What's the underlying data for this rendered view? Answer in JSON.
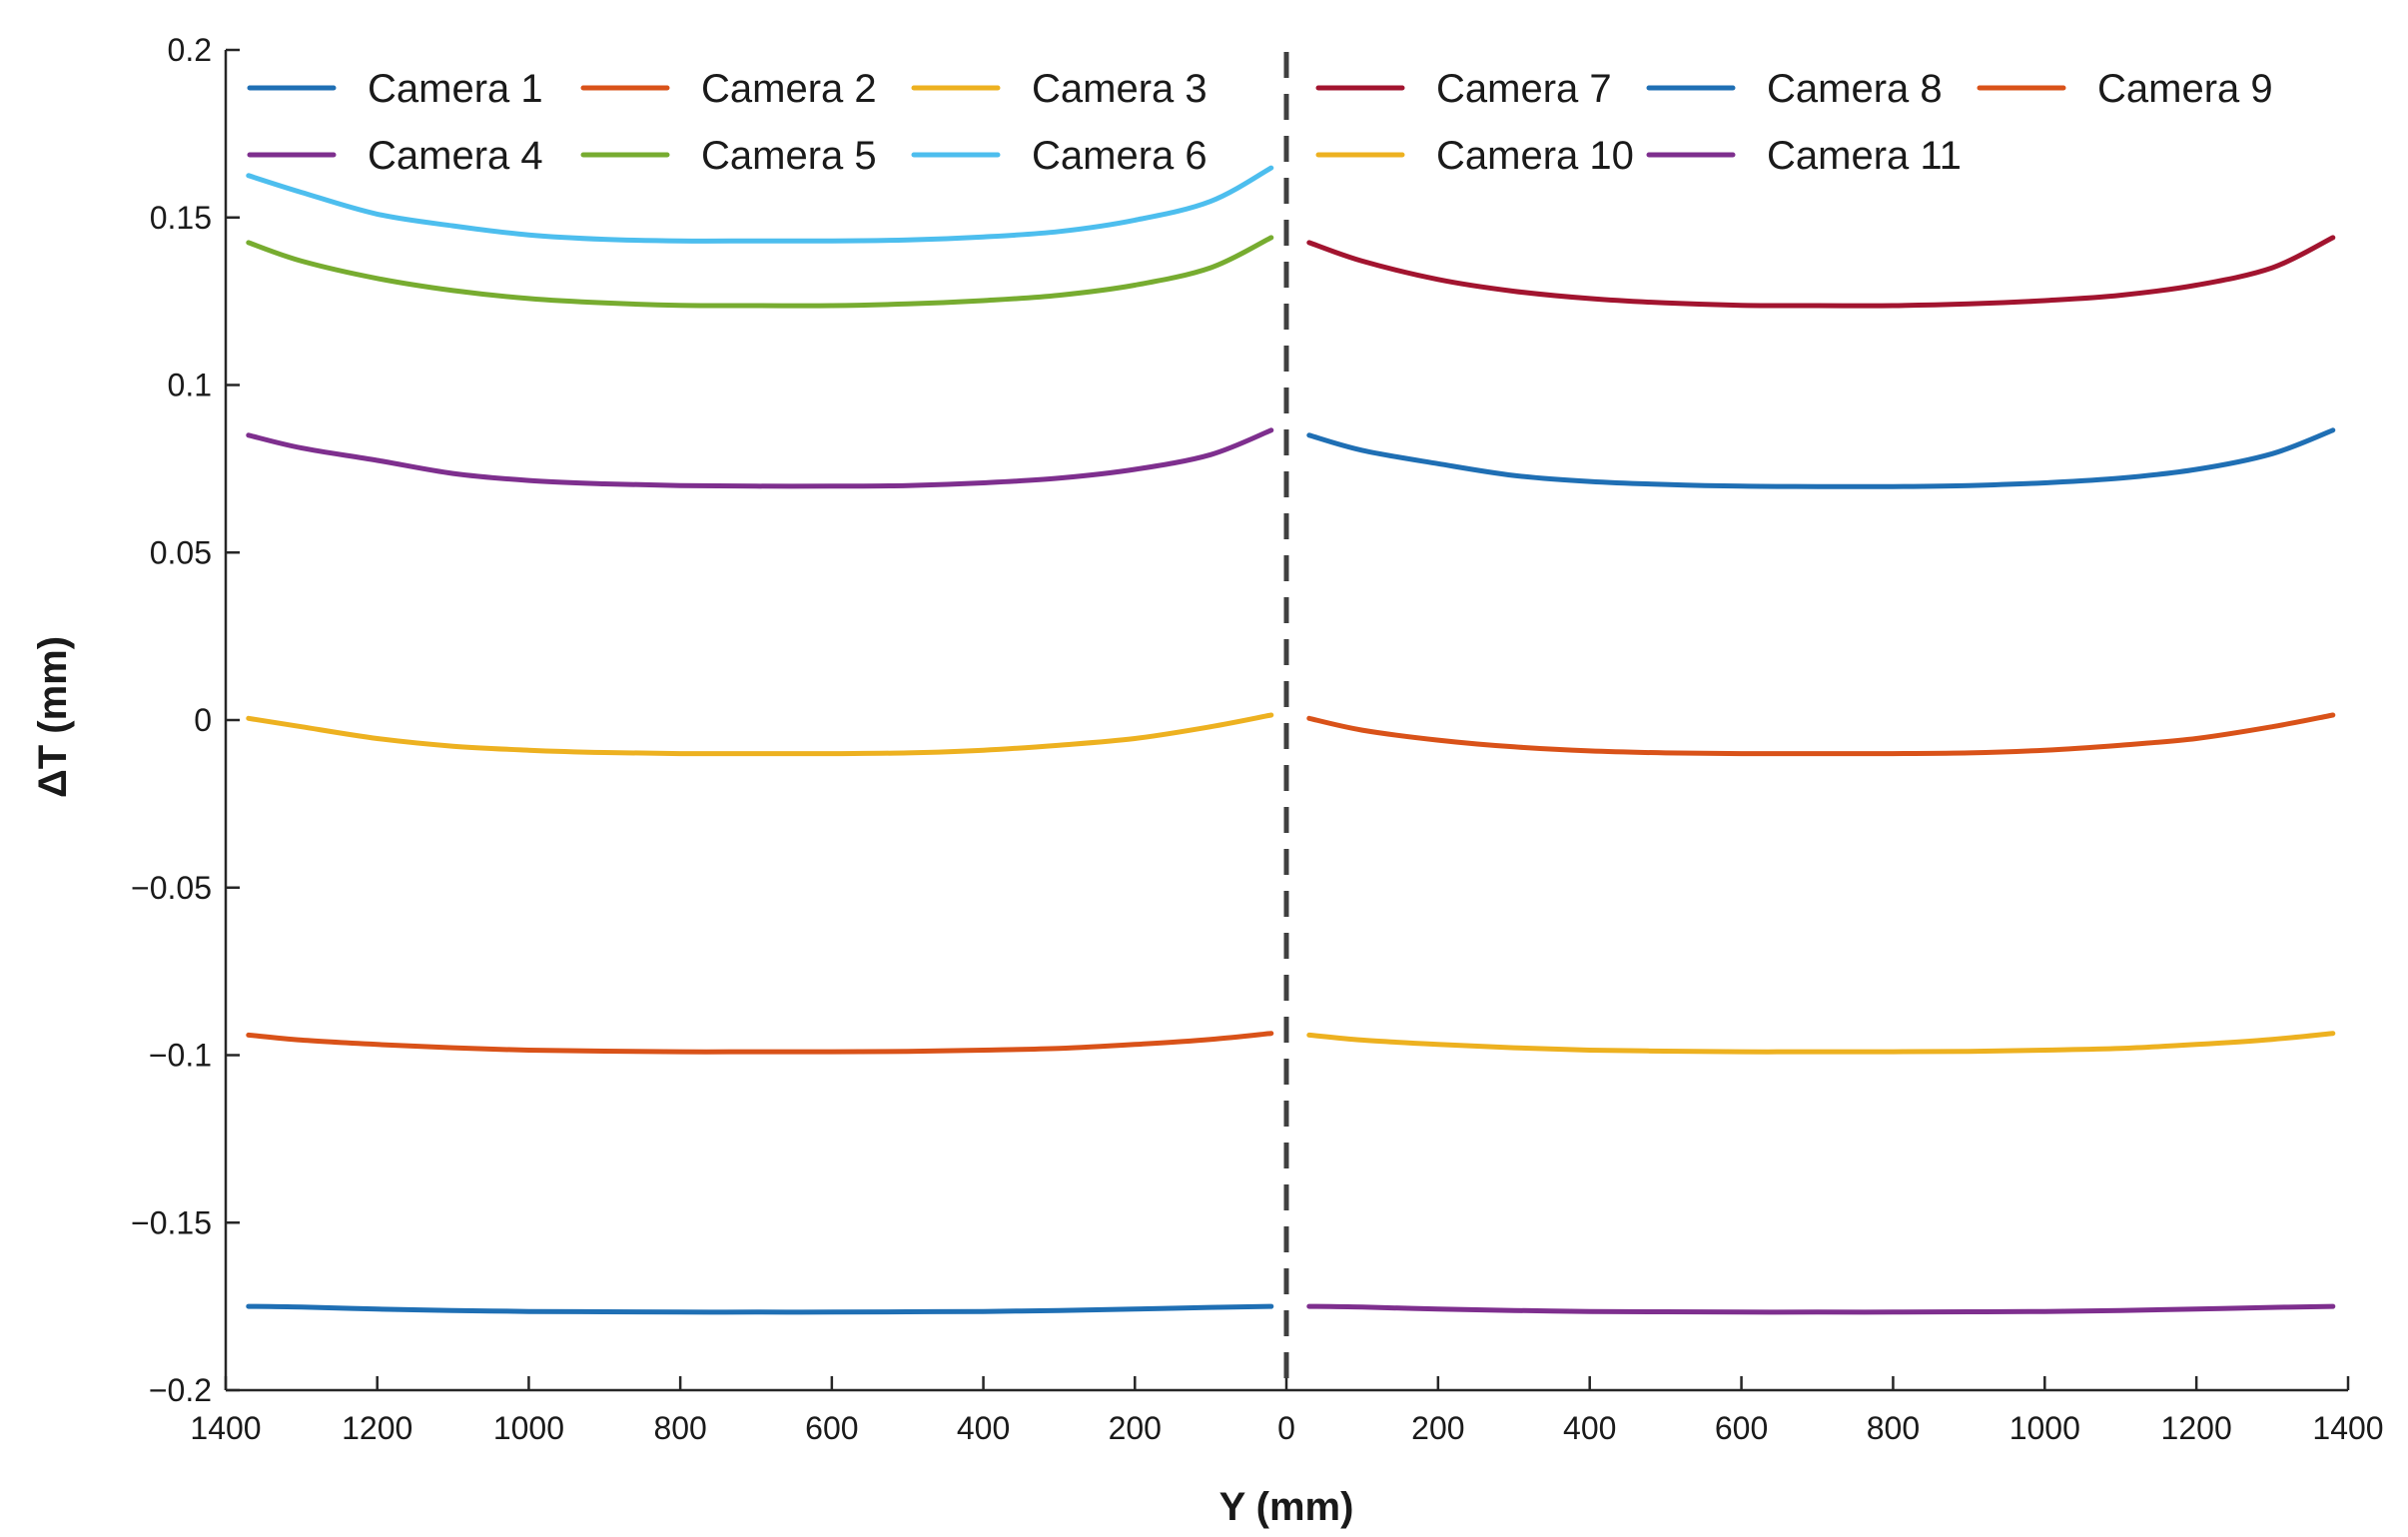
{
  "chart_data": {
    "type": "line",
    "xlabel": "Y (mm)",
    "ylabel": "ΔT (mm)",
    "ylim": [
      -0.2,
      0.2
    ],
    "yticks": [
      {
        "value": 0.2,
        "label": "0.2"
      },
      {
        "value": 0.15,
        "label": "0.15"
      },
      {
        "value": 0.1,
        "label": "0.1"
      },
      {
        "value": 0.05,
        "label": "0.05"
      },
      {
        "value": 0,
        "label": "0"
      },
      {
        "value": -0.05,
        "label": "−0.05"
      },
      {
        "value": -0.1,
        "label": "−0.1"
      },
      {
        "value": -0.15,
        "label": "−0.15"
      },
      {
        "value": -0.2,
        "label": "−0.2"
      }
    ],
    "xticks_left": [
      "1400",
      "1200",
      "1000",
      "800",
      "600",
      "400",
      "200"
    ],
    "xticks_right": [
      "0",
      "200",
      "400",
      "600",
      "800",
      "1000",
      "1200",
      "1400"
    ],
    "divider": "dashed vertical line at Y = 0",
    "legend_placement": "top",
    "panels": [
      {
        "side": "left",
        "x_direction": "decreasing",
        "xlim": [
          1400,
          0
        ],
        "series": [
          {
            "name": "Camera 1",
            "color": "#1f6fb4",
            "x": [
              1370,
              1300,
              1200,
              1100,
              1000,
              900,
              800,
              700,
              600,
              500,
              400,
              300,
              200,
              100,
              20
            ],
            "y": [
              -0.175,
              -0.1752,
              -0.1758,
              -0.1762,
              -0.1765,
              -0.1766,
              -0.1767,
              -0.1767,
              -0.1767,
              -0.1766,
              -0.1765,
              -0.1762,
              -0.1758,
              -0.1753,
              -0.175
            ]
          },
          {
            "name": "Camera 2",
            "color": "#d95219",
            "x": [
              1370,
              1300,
              1200,
              1100,
              1000,
              900,
              800,
              700,
              600,
              500,
              400,
              300,
              200,
              100,
              20
            ],
            "y": [
              -0.094,
              -0.0955,
              -0.0968,
              -0.0978,
              -0.0985,
              -0.0988,
              -0.099,
              -0.099,
              -0.099,
              -0.0989,
              -0.0985,
              -0.098,
              -0.0968,
              -0.0953,
              -0.0935
            ]
          },
          {
            "name": "Camera 3",
            "color": "#edb120",
            "x": [
              1370,
              1300,
              1200,
              1100,
              1000,
              900,
              800,
              700,
              600,
              500,
              400,
              300,
              200,
              100,
              20
            ],
            "y": [
              0.0005,
              -0.002,
              -0.0055,
              -0.0078,
              -0.009,
              -0.0097,
              -0.01,
              -0.01,
              -0.01,
              -0.0098,
              -0.009,
              -0.0075,
              -0.0055,
              -0.002,
              0.0015
            ]
          },
          {
            "name": "Camera 4",
            "color": "#7e2f8e",
            "x": [
              1370,
              1300,
              1200,
              1100,
              1000,
              900,
              800,
              700,
              600,
              500,
              400,
              300,
              200,
              100,
              20
            ],
            "y": [
              0.085,
              0.0812,
              0.0775,
              0.0736,
              0.0715,
              0.0705,
              0.07,
              0.0698,
              0.0698,
              0.07,
              0.0708,
              0.0722,
              0.0748,
              0.0792,
              0.0865
            ]
          },
          {
            "name": "Camera 5",
            "color": "#77ac30",
            "x": [
              1370,
              1300,
              1200,
              1100,
              1000,
              900,
              800,
              700,
              600,
              500,
              400,
              300,
              200,
              100,
              20
            ],
            "y": [
              0.1425,
              0.137,
              0.1318,
              0.1282,
              0.1258,
              0.1245,
              0.1238,
              0.1237,
              0.1237,
              0.1242,
              0.1252,
              0.1268,
              0.1298,
              0.135,
              0.144
            ]
          },
          {
            "name": "Camera 6",
            "color": "#4dbeee",
            "x": [
              1370,
              1300,
              1200,
              1100,
              1000,
              900,
              800,
              700,
              600,
              500,
              400,
              300,
              200,
              100,
              20
            ],
            "y": [
              0.1625,
              0.1575,
              0.151,
              0.1475,
              0.1448,
              0.1435,
              0.143,
              0.143,
              0.143,
              0.1433,
              0.1442,
              0.1458,
              0.1492,
              0.1548,
              0.1648
            ]
          }
        ]
      },
      {
        "side": "right",
        "x_direction": "increasing",
        "xlim": [
          0,
          1400
        ],
        "series": [
          {
            "name": "Camera 7",
            "color": "#a2142f",
            "x": [
              30,
              100,
              200,
              300,
              400,
              500,
              600,
              700,
              800,
              900,
              1000,
              1100,
              1200,
              1300,
              1380
            ],
            "y": [
              0.1425,
              0.137,
              0.1315,
              0.128,
              0.1258,
              0.1245,
              0.1238,
              0.1237,
              0.1237,
              0.1242,
              0.1252,
              0.1268,
              0.1298,
              0.135,
              0.144
            ]
          },
          {
            "name": "Camera 8",
            "color": "#1f6fb4",
            "x": [
              30,
              100,
              200,
              300,
              400,
              500,
              600,
              700,
              800,
              900,
              1000,
              1100,
              1200,
              1300,
              1380
            ],
            "y": [
              0.085,
              0.0805,
              0.0765,
              0.073,
              0.0712,
              0.0703,
              0.0698,
              0.0697,
              0.0697,
              0.07,
              0.0708,
              0.0722,
              0.0748,
              0.0795,
              0.0865
            ]
          },
          {
            "name": "Camera 9",
            "color": "#d95219",
            "x": [
              30,
              100,
              200,
              300,
              400,
              500,
              600,
              700,
              800,
              900,
              1000,
              1100,
              1200,
              1300,
              1380
            ],
            "y": [
              0.0005,
              -0.003,
              -0.006,
              -0.008,
              -0.0092,
              -0.0098,
              -0.01,
              -0.01,
              -0.01,
              -0.0098,
              -0.009,
              -0.0075,
              -0.0055,
              -0.002,
              0.0015
            ]
          },
          {
            "name": "Camera 10",
            "color": "#edb120",
            "x": [
              30,
              100,
              200,
              300,
              400,
              500,
              600,
              700,
              800,
              900,
              1000,
              1100,
              1200,
              1300,
              1380
            ],
            "y": [
              -0.094,
              -0.0955,
              -0.0968,
              -0.0978,
              -0.0985,
              -0.0988,
              -0.099,
              -0.099,
              -0.099,
              -0.0989,
              -0.0985,
              -0.098,
              -0.0968,
              -0.0953,
              -0.0935
            ]
          },
          {
            "name": "Camera 11",
            "color": "#7e2f8e",
            "x": [
              30,
              100,
              200,
              300,
              400,
              500,
              600,
              700,
              800,
              900,
              1000,
              1100,
              1200,
              1300,
              1380
            ],
            "y": [
              -0.175,
              -0.1752,
              -0.1758,
              -0.1762,
              -0.1765,
              -0.1766,
              -0.1767,
              -0.1767,
              -0.1767,
              -0.1766,
              -0.1765,
              -0.1762,
              -0.1758,
              -0.1753,
              -0.175
            ]
          }
        ]
      }
    ]
  }
}
